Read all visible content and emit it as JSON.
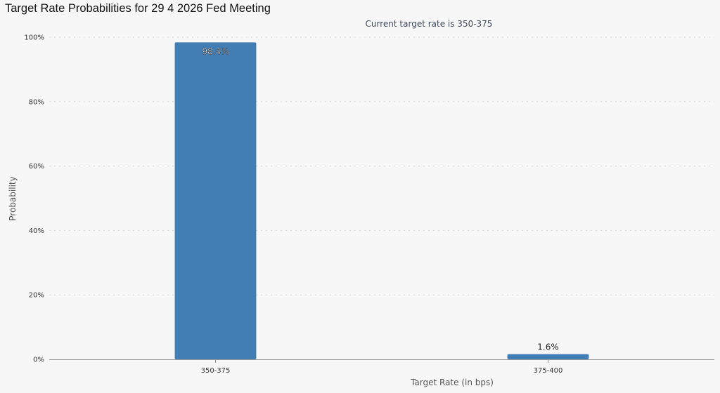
{
  "page": {
    "title": "Target Rate Probabilities for 29 4 2026 Fed Meeting"
  },
  "chart_data": {
    "type": "bar",
    "subtitle": "Current target rate is 350-375",
    "categories": [
      "350-375",
      "375-400"
    ],
    "values": [
      98.4,
      1.6
    ],
    "data_labels": [
      "98.4%",
      "1.6%"
    ],
    "xlabel": "Target Rate (in bps)",
    "ylabel": "Probability",
    "ylim": [
      0,
      100
    ],
    "yticks": [
      0,
      20,
      40,
      60,
      80,
      100
    ],
    "ytick_suffix": "%",
    "grid": true,
    "legend": "none",
    "colors": {
      "bar": "#427eb3",
      "grid": "#d6d6d6",
      "background": "#f7f7f7"
    }
  }
}
